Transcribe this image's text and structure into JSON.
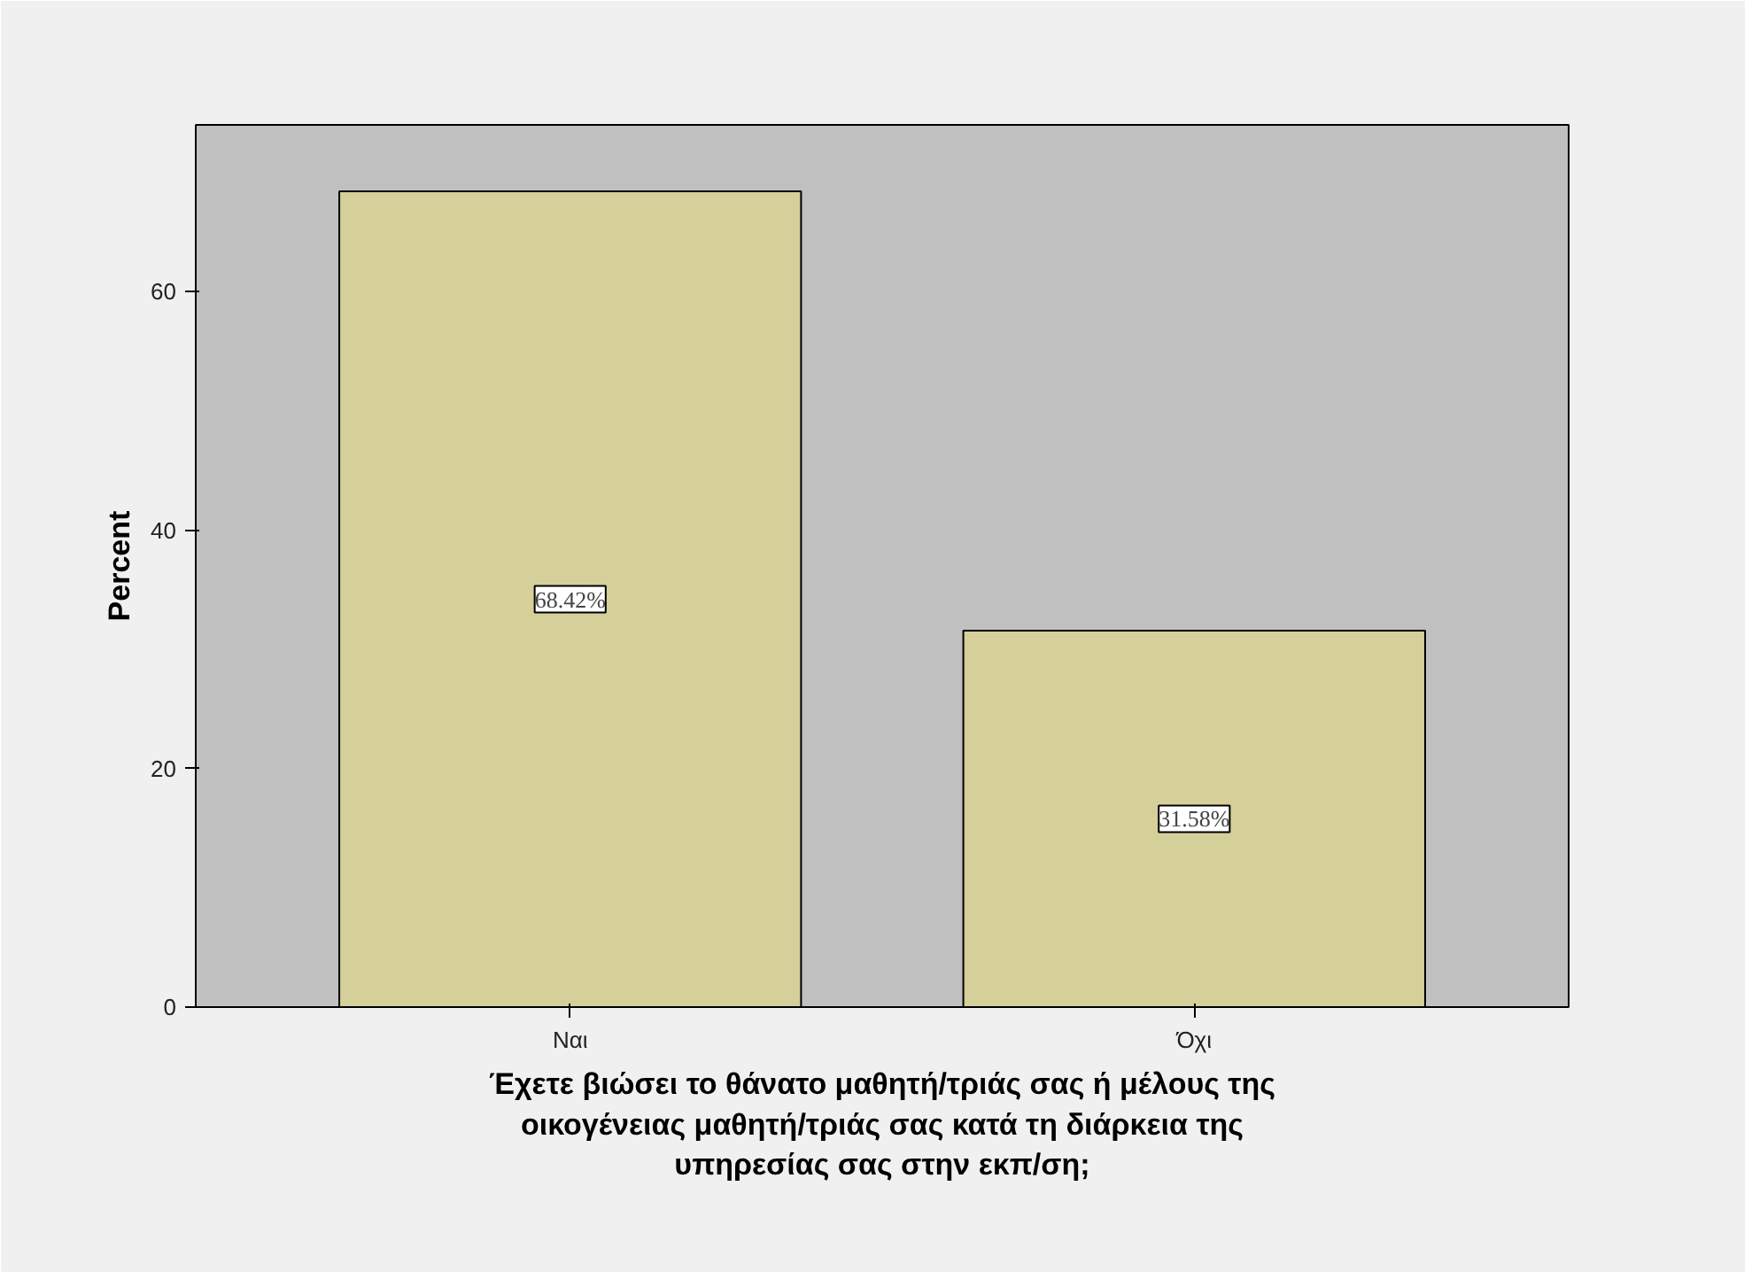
{
  "chart_data": {
    "type": "bar",
    "xlabel": "Έχετε βιώσει το θάνατο μαθητή/τριάς σας ή μέλους της οικογένειας μαθητή/τριάς σας κατά τη διάρκεια της υπηρεσίας σας στην εκπ/ση;",
    "ylabel": "Percent",
    "categories": [
      "Ναι",
      "Όχι"
    ],
    "values": [
      68.42,
      31.58
    ],
    "value_labels": [
      "68.42%",
      "31.58%"
    ],
    "color": "#d5cf9a",
    "ylim": [
      0,
      74
    ],
    "yticks": [
      0,
      20,
      40,
      60
    ],
    "grid": false
  }
}
